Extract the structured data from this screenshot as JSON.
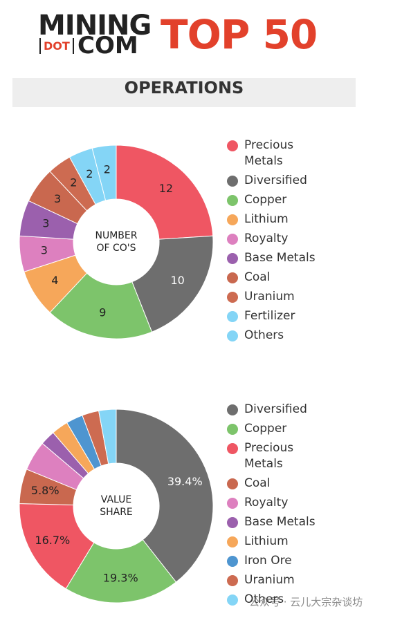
{
  "header": {
    "brand_top": "MINING",
    "brand_dot": "DOT",
    "brand_com": "COM",
    "title": "TOP 50",
    "section": "OPERATIONS"
  },
  "chart_data": [
    {
      "type": "pie",
      "center_label": "NUMBER OF CO'S",
      "categories": [
        "Precious Metals",
        "Diversified",
        "Copper",
        "Lithium",
        "Royalty",
        "Base Metals",
        "Coal",
        "Uranium",
        "Fertilizer",
        "Others"
      ],
      "values": [
        12,
        10,
        9,
        4,
        3,
        3,
        3,
        2,
        2,
        2
      ],
      "colors": [
        "#ef5663",
        "#6e6e6e",
        "#7dc46b",
        "#f6a75a",
        "#dd80bf",
        "#9b60ad",
        "#c9684f",
        "#cd6b51",
        "#84d5f6",
        "#84d5f6"
      ]
    },
    {
      "type": "pie",
      "center_label": "VALUE SHARE",
      "categories": [
        "Diversified",
        "Copper",
        "Precious Metals",
        "Coal",
        "Royalty",
        "Base Metals",
        "Lithium",
        "Iron Ore",
        "Uranium",
        "Others"
      ],
      "values": [
        39.4,
        19.3,
        16.7,
        5.8,
        5,
        2.5,
        2.8,
        2.8,
        2.8,
        2.9
      ],
      "value_labels": [
        "39.4%",
        "19.3%",
        "16.7%",
        "5.8%",
        null,
        null,
        null,
        null,
        null,
        null
      ],
      "colors": [
        "#6e6e6e",
        "#7dc46b",
        "#ef5663",
        "#c9684f",
        "#dd80bf",
        "#9b60ad",
        "#f6a75a",
        "#4e95d0",
        "#cd6b51",
        "#84d5f6"
      ]
    }
  ],
  "watermark": "公众号 · 云儿大宗杂谈坊"
}
